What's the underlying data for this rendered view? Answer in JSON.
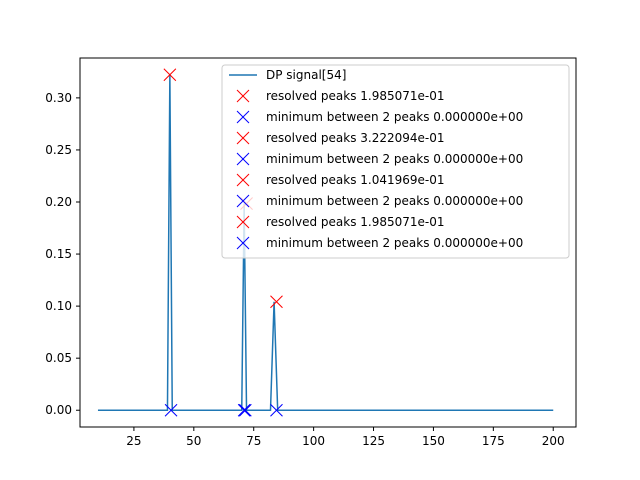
{
  "chart_data": {
    "type": "line",
    "title": "",
    "xlabel": "",
    "ylabel": "",
    "xlim": [
      2.5,
      209.5
    ],
    "ylim": [
      -0.0161,
      0.3383
    ],
    "x_ticks": [
      25,
      50,
      75,
      100,
      125,
      150,
      175,
      200
    ],
    "x_tick_labels": [
      "25",
      "50",
      "75",
      "100",
      "125",
      "150",
      "175",
      "200"
    ],
    "y_ticks": [
      0.0,
      0.05,
      0.1,
      0.15,
      0.2,
      0.25,
      0.3
    ],
    "y_tick_labels": [
      "0.00",
      "0.05",
      "0.10",
      "0.15",
      "0.20",
      "0.25",
      "0.30"
    ],
    "grid": false,
    "legend_position": "top-right",
    "series": [
      {
        "name": "DP signal[54]",
        "kind": "line",
        "color": "#1f77b4",
        "x": [
          10,
          39,
          40,
          41,
          70,
          71,
          72,
          82,
          83.5,
          85,
          200
        ],
        "y": [
          0,
          0,
          0.3222,
          0,
          0,
          0.1985,
          0,
          0,
          0.1042,
          0,
          0
        ]
      },
      {
        "name": "resolved peaks 1.985071e-01",
        "kind": "marker",
        "color": "#ff0000",
        "x": [
          72
        ],
        "y": [
          0.1985
        ]
      },
      {
        "name": "minimum between 2 peaks 0.000000e+00",
        "kind": "marker",
        "color": "#0000ff",
        "x": [
          71
        ],
        "y": [
          0
        ]
      },
      {
        "name": "resolved peaks 3.222094e-01",
        "kind": "marker",
        "color": "#ff0000",
        "x": [
          40
        ],
        "y": [
          0.3222
        ]
      },
      {
        "name": "minimum between 2 peaks 0.000000e+00",
        "kind": "marker",
        "color": "#0000ff",
        "x": [
          40.5
        ],
        "y": [
          0
        ]
      },
      {
        "name": "resolved peaks 1.041969e-01",
        "kind": "marker",
        "color": "#ff0000",
        "x": [
          84.5
        ],
        "y": [
          0.1042
        ]
      },
      {
        "name": "minimum between 2 peaks 0.000000e+00",
        "kind": "marker",
        "color": "#0000ff",
        "x": [
          84.5
        ],
        "y": [
          0
        ]
      },
      {
        "name": "resolved peaks 1.985071e-01",
        "kind": "marker",
        "color": "#ff0000",
        "x": [
          72
        ],
        "y": [
          0.1985
        ]
      },
      {
        "name": "minimum between 2 peaks 0.000000e+00",
        "kind": "marker",
        "color": "#0000ff",
        "x": [
          71.5
        ],
        "y": [
          0
        ]
      }
    ]
  }
}
